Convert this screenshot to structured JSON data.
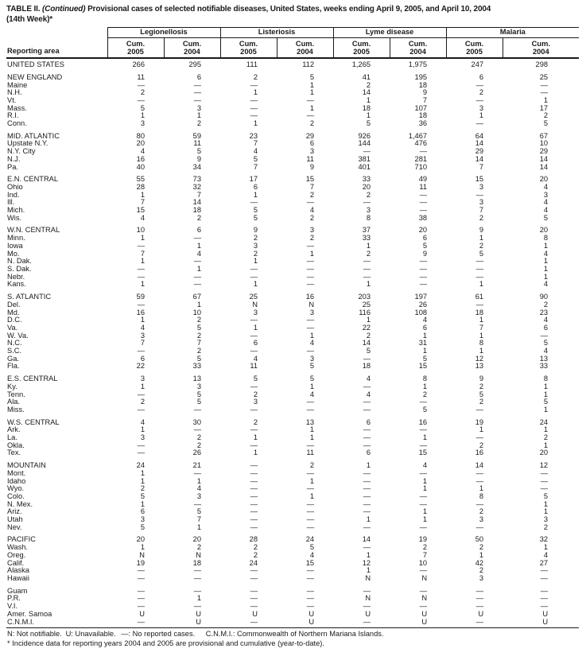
{
  "title": {
    "prefix": "TABLE II.",
    "continued": "(Continued)",
    "rest": "Provisional cases of selected notifiable diseases, United States, weeks ending April 9, 2005, and April 10, 2004",
    "line2": "(14th Week)*"
  },
  "header": {
    "reporting_area": "Reporting area",
    "groups": [
      "Legionellosis",
      "Listeriosis",
      "Lyme disease",
      "Malaria"
    ],
    "subcols": [
      {
        "l1": "Cum.",
        "l2": "2005"
      },
      {
        "l1": "Cum.",
        "l2": "2004"
      }
    ]
  },
  "rows": [
    {
      "area": "UNITED STATES",
      "values": [
        "266",
        "295",
        "111",
        "112",
        "1,265",
        "1,975",
        "247",
        "298"
      ],
      "section_start": false
    },
    {
      "area": "NEW ENGLAND",
      "values": [
        "11",
        "6",
        "2",
        "5",
        "41",
        "195",
        "6",
        "25"
      ],
      "section_start": true
    },
    {
      "area": "Maine",
      "values": [
        "—",
        "—",
        "—",
        "1",
        "2",
        "18",
        "—",
        "—"
      ],
      "section_start": false
    },
    {
      "area": "N.H.",
      "values": [
        "2",
        "—",
        "1",
        "1",
        "14",
        "9",
        "2",
        "—"
      ],
      "section_start": false
    },
    {
      "area": "Vt.",
      "values": [
        "—",
        "—",
        "—",
        "—",
        "1",
        "7",
        "—",
        "1"
      ],
      "section_start": false
    },
    {
      "area": "Mass.",
      "values": [
        "5",
        "3",
        "—",
        "1",
        "18",
        "107",
        "3",
        "17"
      ],
      "section_start": false
    },
    {
      "area": "R.I.",
      "values": [
        "1",
        "1",
        "—",
        "—",
        "1",
        "18",
        "1",
        "2"
      ],
      "section_start": false
    },
    {
      "area": "Conn.",
      "values": [
        "3",
        "2",
        "1",
        "2",
        "5",
        "36",
        "—",
        "5"
      ],
      "section_start": false
    },
    {
      "area": "MID. ATLANTIC",
      "values": [
        "80",
        "59",
        "23",
        "29",
        "926",
        "1,467",
        "64",
        "67"
      ],
      "section_start": true
    },
    {
      "area": "Upstate N.Y.",
      "values": [
        "20",
        "11",
        "7",
        "6",
        "144",
        "476",
        "14",
        "10"
      ],
      "section_start": false
    },
    {
      "area": "N.Y. City",
      "values": [
        "4",
        "5",
        "4",
        "3",
        "—",
        "—",
        "29",
        "29"
      ],
      "section_start": false
    },
    {
      "area": "N.J.",
      "values": [
        "16",
        "9",
        "5",
        "11",
        "381",
        "281",
        "14",
        "14"
      ],
      "section_start": false
    },
    {
      "area": "Pa.",
      "values": [
        "40",
        "34",
        "7",
        "9",
        "401",
        "710",
        "7",
        "14"
      ],
      "section_start": false
    },
    {
      "area": "E.N. CENTRAL",
      "values": [
        "55",
        "73",
        "17",
        "15",
        "33",
        "49",
        "15",
        "20"
      ],
      "section_start": true
    },
    {
      "area": "Ohio",
      "values": [
        "28",
        "32",
        "6",
        "7",
        "20",
        "11",
        "3",
        "4"
      ],
      "section_start": false
    },
    {
      "area": "Ind.",
      "values": [
        "1",
        "7",
        "1",
        "2",
        "2",
        "—",
        "—",
        "3"
      ],
      "section_start": false
    },
    {
      "area": "Ill.",
      "values": [
        "7",
        "14",
        "—",
        "—",
        "—",
        "—",
        "3",
        "4"
      ],
      "section_start": false
    },
    {
      "area": "Mich.",
      "values": [
        "15",
        "18",
        "5",
        "4",
        "3",
        "—",
        "7",
        "4"
      ],
      "section_start": false
    },
    {
      "area": "Wis.",
      "values": [
        "4",
        "2",
        "5",
        "2",
        "8",
        "38",
        "2",
        "5"
      ],
      "section_start": false
    },
    {
      "area": "W.N. CENTRAL",
      "values": [
        "10",
        "6",
        "9",
        "3",
        "37",
        "20",
        "9",
        "20"
      ],
      "section_start": true
    },
    {
      "area": "Minn.",
      "values": [
        "1",
        "—",
        "2",
        "2",
        "33",
        "6",
        "1",
        "8"
      ],
      "section_start": false
    },
    {
      "area": "Iowa",
      "values": [
        "—",
        "1",
        "3",
        "—",
        "1",
        "5",
        "2",
        "1"
      ],
      "section_start": false
    },
    {
      "area": "Mo.",
      "values": [
        "7",
        "4",
        "2",
        "1",
        "2",
        "9",
        "5",
        "4"
      ],
      "section_start": false
    },
    {
      "area": "N. Dak.",
      "values": [
        "1",
        "—",
        "1",
        "—",
        "—",
        "—",
        "—",
        "1"
      ],
      "section_start": false
    },
    {
      "area": "S. Dak.",
      "values": [
        "—",
        "1",
        "—",
        "—",
        "—",
        "—",
        "—",
        "1"
      ],
      "section_start": false
    },
    {
      "area": "Nebr.",
      "values": [
        "—",
        "—",
        "—",
        "—",
        "—",
        "—",
        "—",
        "1"
      ],
      "section_start": false
    },
    {
      "area": "Kans.",
      "values": [
        "1",
        "—",
        "1",
        "—",
        "1",
        "—",
        "1",
        "4"
      ],
      "section_start": false
    },
    {
      "area": "S. ATLANTIC",
      "values": [
        "59",
        "67",
        "25",
        "16",
        "203",
        "197",
        "61",
        "90"
      ],
      "section_start": true
    },
    {
      "area": "Del.",
      "values": [
        "—",
        "1",
        "N",
        "N",
        "25",
        "26",
        "—",
        "2"
      ],
      "section_start": false
    },
    {
      "area": "Md.",
      "values": [
        "16",
        "10",
        "3",
        "3",
        "116",
        "108",
        "18",
        "23"
      ],
      "section_start": false
    },
    {
      "area": "D.C.",
      "values": [
        "1",
        "2",
        "—",
        "—",
        "1",
        "4",
        "1",
        "4"
      ],
      "section_start": false
    },
    {
      "area": "Va.",
      "values": [
        "4",
        "5",
        "1",
        "—",
        "22",
        "6",
        "7",
        "6"
      ],
      "section_start": false
    },
    {
      "area": "W. Va.",
      "values": [
        "3",
        "2",
        "—",
        "1",
        "2",
        "1",
        "1",
        "—"
      ],
      "section_start": false
    },
    {
      "area": "N.C.",
      "values": [
        "7",
        "7",
        "6",
        "4",
        "14",
        "31",
        "8",
        "5"
      ],
      "section_start": false
    },
    {
      "area": "S.C.",
      "values": [
        "—",
        "2",
        "—",
        "—",
        "5",
        "1",
        "1",
        "4"
      ],
      "section_start": false
    },
    {
      "area": "Ga.",
      "values": [
        "6",
        "5",
        "4",
        "3",
        "—",
        "5",
        "12",
        "13"
      ],
      "section_start": false
    },
    {
      "area": "Fla.",
      "values": [
        "22",
        "33",
        "11",
        "5",
        "18",
        "15",
        "13",
        "33"
      ],
      "section_start": false
    },
    {
      "area": "E.S. CENTRAL",
      "values": [
        "3",
        "13",
        "5",
        "5",
        "4",
        "8",
        "9",
        "8"
      ],
      "section_start": true
    },
    {
      "area": "Ky.",
      "values": [
        "1",
        "3",
        "—",
        "1",
        "—",
        "1",
        "2",
        "1"
      ],
      "section_start": false
    },
    {
      "area": "Tenn.",
      "values": [
        "—",
        "5",
        "2",
        "4",
        "4",
        "2",
        "5",
        "1"
      ],
      "section_start": false
    },
    {
      "area": "Ala.",
      "values": [
        "2",
        "5",
        "3",
        "—",
        "—",
        "—",
        "2",
        "5"
      ],
      "section_start": false
    },
    {
      "area": "Miss.",
      "values": [
        "—",
        "—",
        "—",
        "—",
        "—",
        "5",
        "—",
        "1"
      ],
      "section_start": false
    },
    {
      "area": "W.S. CENTRAL",
      "values": [
        "4",
        "30",
        "2",
        "13",
        "6",
        "16",
        "19",
        "24"
      ],
      "section_start": true
    },
    {
      "area": "Ark.",
      "values": [
        "1",
        "—",
        "—",
        "1",
        "—",
        "—",
        "1",
        "1"
      ],
      "section_start": false
    },
    {
      "area": "La.",
      "values": [
        "3",
        "2",
        "1",
        "1",
        "—",
        "1",
        "—",
        "2"
      ],
      "section_start": false
    },
    {
      "area": "Okla.",
      "values": [
        "—",
        "2",
        "—",
        "—",
        "—",
        "—",
        "2",
        "1"
      ],
      "section_start": false
    },
    {
      "area": "Tex.",
      "values": [
        "—",
        "26",
        "1",
        "11",
        "6",
        "15",
        "16",
        "20"
      ],
      "section_start": false
    },
    {
      "area": "MOUNTAIN",
      "values": [
        "24",
        "21",
        "—",
        "2",
        "1",
        "4",
        "14",
        "12"
      ],
      "section_start": true
    },
    {
      "area": "Mont.",
      "values": [
        "1",
        "—",
        "—",
        "—",
        "—",
        "—",
        "—",
        "—"
      ],
      "section_start": false
    },
    {
      "area": "Idaho",
      "values": [
        "1",
        "1",
        "—",
        "1",
        "—",
        "1",
        "—",
        "—"
      ],
      "section_start": false
    },
    {
      "area": "Wyo.",
      "values": [
        "2",
        "4",
        "—",
        "—",
        "—",
        "1",
        "1",
        "—"
      ],
      "section_start": false
    },
    {
      "area": "Colo.",
      "values": [
        "5",
        "3",
        "—",
        "1",
        "—",
        "—",
        "8",
        "5"
      ],
      "section_start": false
    },
    {
      "area": "N. Mex.",
      "values": [
        "1",
        "—",
        "—",
        "—",
        "—",
        "—",
        "—",
        "1"
      ],
      "section_start": false
    },
    {
      "area": "Ariz.",
      "values": [
        "6",
        "5",
        "—",
        "—",
        "—",
        "1",
        "2",
        "1"
      ],
      "section_start": false
    },
    {
      "area": "Utah",
      "values": [
        "3",
        "7",
        "—",
        "—",
        "1",
        "1",
        "3",
        "3"
      ],
      "section_start": false
    },
    {
      "area": "Nev.",
      "values": [
        "5",
        "1",
        "—",
        "—",
        "—",
        "—",
        "—",
        "2"
      ],
      "section_start": false
    },
    {
      "area": "PACIFIC",
      "values": [
        "20",
        "20",
        "28",
        "24",
        "14",
        "19",
        "50",
        "32"
      ],
      "section_start": true
    },
    {
      "area": "Wash.",
      "values": [
        "1",
        "2",
        "2",
        "5",
        "—",
        "2",
        "2",
        "1"
      ],
      "section_start": false
    },
    {
      "area": "Oreg.",
      "values": [
        "N",
        "N",
        "2",
        "4",
        "1",
        "7",
        "1",
        "4"
      ],
      "section_start": false
    },
    {
      "area": "Calif.",
      "values": [
        "19",
        "18",
        "24",
        "15",
        "12",
        "10",
        "42",
        "27"
      ],
      "section_start": false
    },
    {
      "area": "Alaska",
      "values": [
        "—",
        "—",
        "—",
        "—",
        "1",
        "—",
        "2",
        "—"
      ],
      "section_start": false
    },
    {
      "area": "Hawaii",
      "values": [
        "—",
        "—",
        "—",
        "—",
        "N",
        "N",
        "3",
        "—"
      ],
      "section_start": false
    },
    {
      "area": "Guam",
      "values": [
        "—",
        "—",
        "—",
        "—",
        "—",
        "—",
        "—",
        "—"
      ],
      "section_start": true
    },
    {
      "area": "P.R.",
      "values": [
        "—",
        "1",
        "—",
        "—",
        "N",
        "N",
        "—",
        "—"
      ],
      "section_start": false
    },
    {
      "area": "V.I.",
      "values": [
        "—",
        "—",
        "—",
        "—",
        "—",
        "—",
        "—",
        "—"
      ],
      "section_start": false
    },
    {
      "area": "Amer. Samoa",
      "values": [
        "U",
        "U",
        "U",
        "U",
        "U",
        "U",
        "U",
        "U"
      ],
      "section_start": false
    },
    {
      "area": "C.N.M.I.",
      "values": [
        "—",
        "U",
        "—",
        "U",
        "—",
        "U",
        "—",
        "U"
      ],
      "section_start": false
    }
  ],
  "footnotes": {
    "line1": [
      "N: Not notifiable.",
      "U: Unavailable.",
      "—: No reported cases.",
      "C.N.M.I.: Commonwealth of Northern Mariana Islands."
    ],
    "line2": "* Incidence data for reporting years 2004 and 2005 are provisional and cumulative (year-to-date)."
  }
}
